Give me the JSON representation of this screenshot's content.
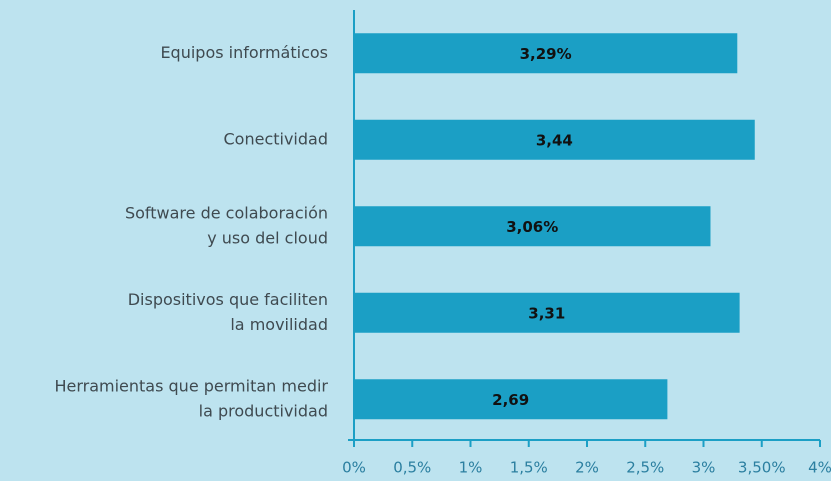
{
  "chart_data": {
    "type": "bar",
    "orientation": "horizontal",
    "categories": [
      [
        "Equipos informáticos"
      ],
      [
        "Conectividad"
      ],
      [
        "Software de colaboración",
        "y uso del cloud"
      ],
      [
        "Dispositivos que faciliten",
        "la movilidad"
      ],
      [
        "Herramientas que permitan medir",
        "la productividad"
      ]
    ],
    "values": [
      3.29,
      3.44,
      3.06,
      3.31,
      2.69
    ],
    "value_labels": [
      "3,29%",
      "3,44",
      "3,06%",
      "3,31",
      "2,69"
    ],
    "color": "#1b9fc5",
    "xlim": [
      0,
      4
    ],
    "xticks": [
      {
        "value": 0,
        "label": "0%"
      },
      {
        "value": 0.5,
        "label": "0,5%"
      },
      {
        "value": 1,
        "label": "1%"
      },
      {
        "value": 1.5,
        "label": "1,5%"
      },
      {
        "value": 2,
        "label": "2%"
      },
      {
        "value": 2.5,
        "label": "2,5%"
      },
      {
        "value": 3,
        "label": "3%"
      },
      {
        "value": 3.5,
        "label": "3,50%"
      },
      {
        "value": 4,
        "label": "4%"
      }
    ]
  }
}
